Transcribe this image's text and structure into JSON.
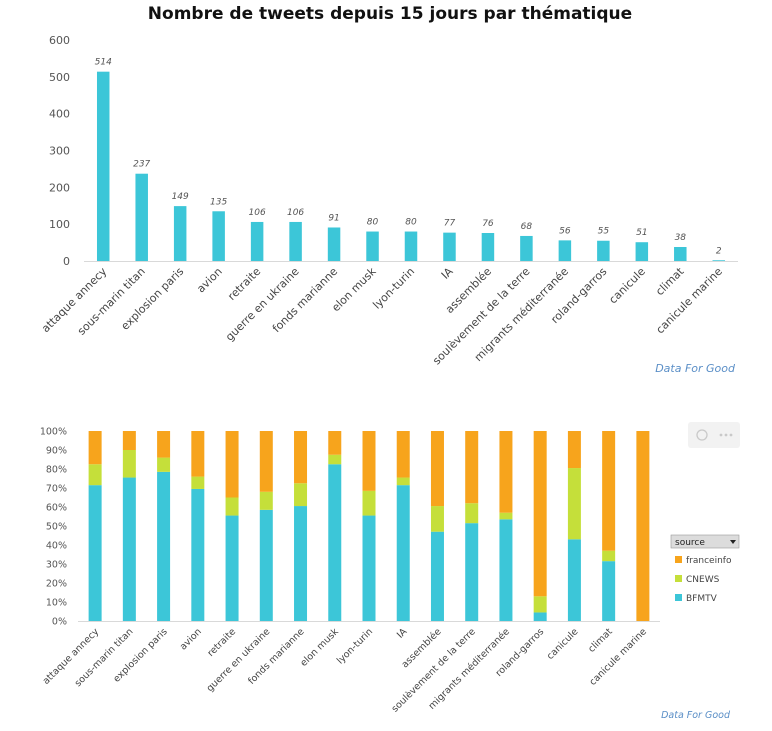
{
  "colors": {
    "bar": "#3cc6d8",
    "bfmtv": "#3cc6d8",
    "cnews": "#c5df3a",
    "franceinfo": "#f7a41c",
    "axis": "#d9d9d9",
    "credit": "#5b8fc7"
  },
  "chart_data": [
    {
      "type": "bar",
      "title": "Nombre de tweets depuis 15 jours par thématique",
      "xlabel": "",
      "ylabel": "",
      "ylim": [
        0,
        600
      ],
      "yticks": [
        "0",
        "100",
        "200",
        "300",
        "400",
        "500",
        "600"
      ],
      "grid": false,
      "categories": [
        "attaque annecy",
        "sous-marin titan",
        "explosion paris",
        "avion",
        "retraite",
        "guerre en ukraine",
        "fonds marianne",
        "elon musk",
        "lyon-turin",
        "IA",
        "assemblée",
        "soulèvement de la terre",
        "migrants méditerranée",
        "roland-garros",
        "canicule",
        "climat",
        "canicule marine"
      ],
      "values": [
        514,
        237,
        149,
        135,
        106,
        106,
        91,
        80,
        80,
        77,
        76,
        68,
        56,
        55,
        51,
        38,
        2
      ],
      "data_labels": [
        "514",
        "237",
        "149",
        "135",
        "106",
        "106",
        "91",
        "80",
        "80",
        "77",
        "76",
        "68",
        "56",
        "55",
        "51",
        "38",
        "2"
      ],
      "credit": "Data For Good"
    },
    {
      "type": "bar",
      "stacked": "percent",
      "title": "",
      "ylim": [
        0,
        100
      ],
      "yticks": [
        "0%",
        "10%",
        "20%",
        "30%",
        "40%",
        "50%",
        "60%",
        "70%",
        "80%",
        "90%",
        "100%"
      ],
      "grid": false,
      "legend": {
        "title": "source",
        "position": "right",
        "items": [
          "franceinfo",
          "CNEWS",
          "BFMTV"
        ]
      },
      "categories": [
        "attaque annecy",
        "sous-marin titan",
        "explosion paris",
        "avion",
        "retraite",
        "guerre en ukraine",
        "fonds marianne",
        "elon musk",
        "lyon-turin",
        "IA",
        "assemblée",
        "soulèvement de la terre",
        "migrants méditerranée",
        "roland-garros",
        "canicule",
        "climat",
        "canicule marine"
      ],
      "series": [
        {
          "name": "BFMTV",
          "values": [
            71.5,
            75.5,
            78.5,
            69.5,
            55.5,
            58.5,
            60.5,
            82.5,
            55.5,
            71.5,
            47,
            51.5,
            53.5,
            4.5,
            43,
            31.5,
            0
          ]
        },
        {
          "name": "CNEWS",
          "values": [
            11,
            14.5,
            7.5,
            6.5,
            9.5,
            9.5,
            12,
            5,
            13,
            4,
            13.5,
            10.5,
            3.5,
            8.5,
            37.5,
            5.5,
            0
          ]
        },
        {
          "name": "franceinfo",
          "values": [
            17.5,
            10,
            14,
            24,
            35,
            32,
            27.5,
            12.5,
            31.5,
            24.5,
            39.5,
            38,
            43,
            87,
            19.5,
            63,
            100
          ]
        }
      ],
      "credit": "Data For Good"
    }
  ]
}
